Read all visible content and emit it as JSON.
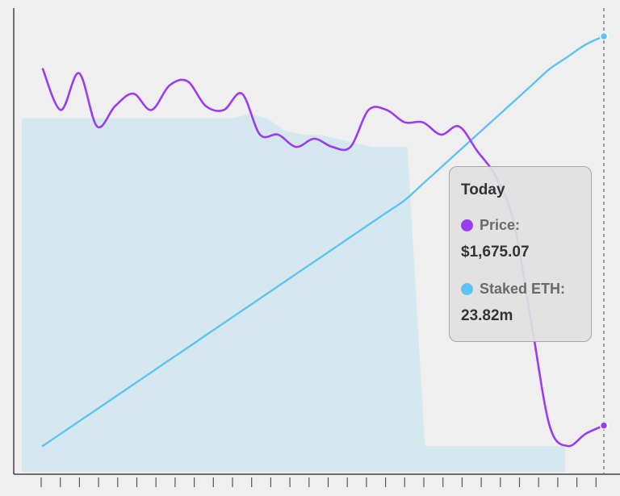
{
  "chart_data": {
    "type": "line",
    "title": "",
    "xlabel": "",
    "ylabel": "",
    "series": [
      {
        "name": "Price",
        "color": "#9b3bf2",
        "values": [
          92,
          82,
          91,
          78,
          83,
          86,
          82,
          88,
          89,
          83,
          82,
          86,
          76,
          76,
          73,
          75,
          73,
          73,
          82,
          82,
          79,
          79,
          76,
          78,
          72,
          66,
          55,
          30,
          5,
          0,
          3,
          5
        ]
      },
      {
        "name": "Staked ETH",
        "color": "#5ec3f2",
        "values": [
          0,
          3,
          6,
          9,
          12,
          15,
          18,
          21,
          24,
          27,
          30,
          33,
          36,
          39,
          42,
          45,
          48,
          51,
          54,
          57,
          60,
          64,
          68,
          72,
          76,
          80,
          84,
          88,
          92,
          95,
          98,
          100
        ]
      }
    ],
    "area": {
      "color": "#d5e8f0",
      "values": [
        80,
        80,
        80,
        80,
        80,
        80,
        80,
        80,
        80,
        80,
        80,
        80,
        80,
        81,
        80,
        77,
        76,
        76,
        75,
        74,
        73,
        73,
        73,
        0,
        0,
        0,
        0,
        0,
        0,
        0,
        0,
        0
      ]
    },
    "ylim": [
      -5,
      103
    ],
    "grid": false,
    "tooltip": {
      "title": "Today",
      "price_label": "Price:",
      "price_value": "$1,675.07",
      "staked_label": "Staked ETH:",
      "staked_value": "23.82m"
    }
  }
}
